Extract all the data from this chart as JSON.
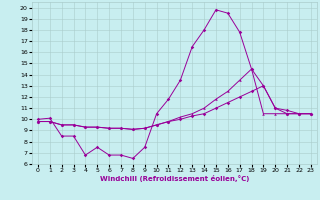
{
  "xlabel": "Windchill (Refroidissement éolien,°C)",
  "bg_color": "#c8eef0",
  "line_color": "#990099",
  "grid_color": "#aacccc",
  "xlim": [
    -0.5,
    23.5
  ],
  "ylim": [
    6,
    20.5
  ],
  "xticks": [
    0,
    1,
    2,
    3,
    4,
    5,
    6,
    7,
    8,
    9,
    10,
    11,
    12,
    13,
    14,
    15,
    16,
    17,
    18,
    19,
    20,
    21,
    22,
    23
  ],
  "yticks": [
    6,
    7,
    8,
    9,
    10,
    11,
    12,
    13,
    14,
    15,
    16,
    17,
    18,
    19,
    20
  ],
  "series1_y": [
    10.0,
    10.1,
    8.5,
    8.5,
    6.8,
    7.5,
    6.8,
    6.8,
    6.5,
    7.5,
    10.5,
    11.8,
    13.5,
    16.5,
    18.0,
    19.8,
    19.5,
    17.8,
    14.5,
    13.0,
    11.0,
    10.5,
    10.5,
    10.5
  ],
  "series2_y": [
    9.8,
    9.8,
    9.5,
    9.5,
    9.3,
    9.3,
    9.2,
    9.2,
    9.1,
    9.2,
    9.5,
    9.8,
    10.2,
    10.5,
    11.0,
    11.8,
    12.5,
    13.5,
    14.5,
    10.5,
    10.5,
    10.5,
    10.5,
    10.5
  ],
  "series3_y": [
    9.8,
    9.8,
    9.5,
    9.5,
    9.3,
    9.3,
    9.2,
    9.2,
    9.1,
    9.2,
    9.5,
    9.8,
    10.0,
    10.3,
    10.5,
    11.0,
    11.5,
    12.0,
    12.5,
    13.0,
    11.0,
    10.8,
    10.5,
    10.5
  ]
}
